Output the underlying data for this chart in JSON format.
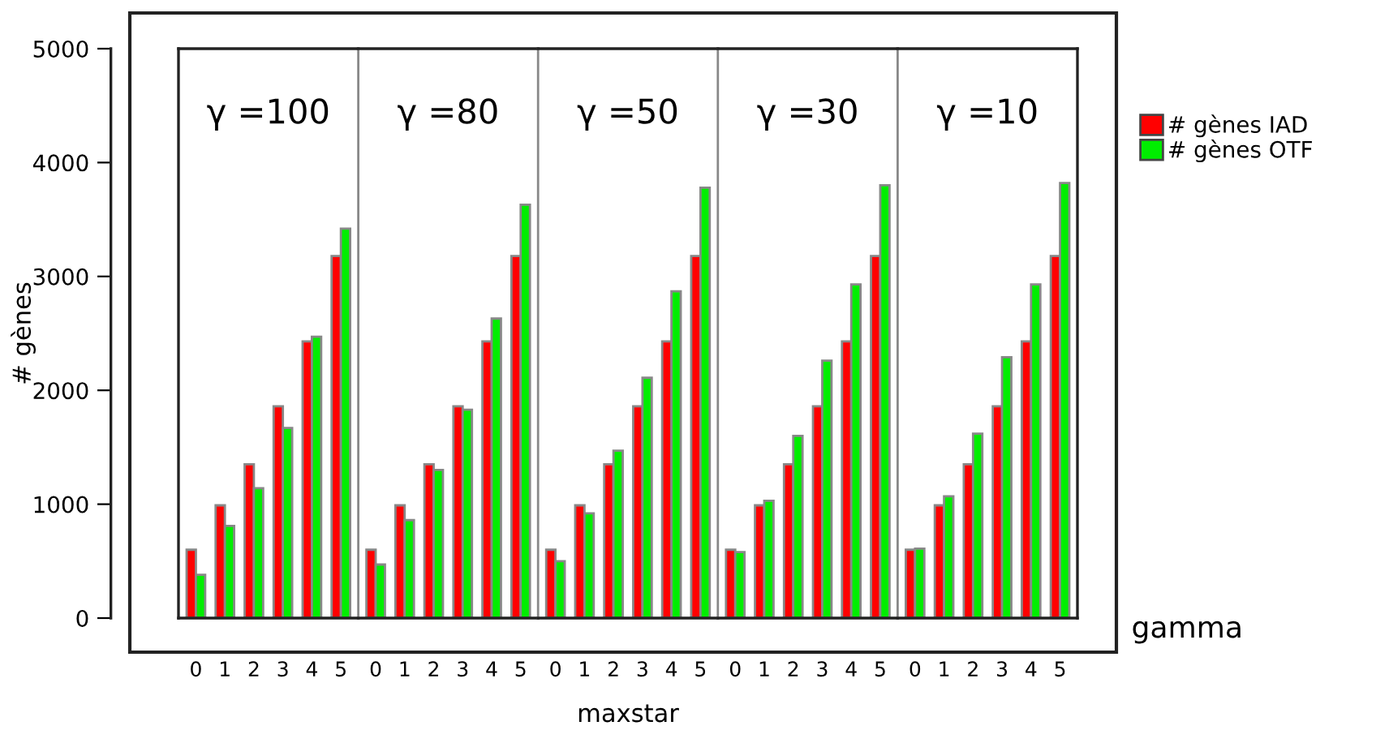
{
  "chart_data": [
    {
      "type": "bar",
      "categories": [
        "0",
        "1",
        "2",
        "3",
        "4",
        "5"
      ],
      "ylabel": "# gènes",
      "ylim": [
        0,
        5000
      ],
      "yticks": [
        0,
        1000,
        2000,
        3000,
        4000,
        5000
      ],
      "annotations": [
        "γ =100"
      ],
      "series": [
        {
          "color": "#ff0000",
          "values": [
            600,
            990,
            1350,
            1860,
            2430,
            3180
          ]
        },
        {
          "color": "#00ee00",
          "values": [
            380,
            810,
            1140,
            1670,
            2470,
            3420
          ]
        }
      ]
    },
    {
      "type": "bar",
      "categories": [
        "0",
        "1",
        "2",
        "3",
        "4",
        "5"
      ],
      "ylim": [
        0,
        5000
      ],
      "tick_labels": "x",
      "annotations": [
        "γ =80"
      ],
      "series": [
        {
          "color": "#ff0000",
          "values": [
            600,
            990,
            1350,
            1860,
            2430,
            3180
          ]
        },
        {
          "color": "#00ee00",
          "values": [
            470,
            860,
            1300,
            1830,
            2630,
            3630
          ]
        }
      ]
    },
    {
      "type": "bar",
      "categories": [
        "0",
        "1",
        "2",
        "3",
        "4",
        "5"
      ],
      "xlabel": "maxstar",
      "ylim": [
        0,
        5000
      ],
      "tick_labels": "x",
      "annotations": [
        "γ =50"
      ],
      "series": [
        {
          "color": "#ff0000",
          "values": [
            600,
            990,
            1350,
            1860,
            2430,
            3180
          ]
        },
        {
          "color": "#00ee00",
          "values": [
            500,
            920,
            1470,
            2110,
            2870,
            3780
          ]
        }
      ]
    },
    {
      "type": "bar",
      "categories": [
        "0",
        "1",
        "2",
        "3",
        "4",
        "5"
      ],
      "ylim": [
        0,
        5000
      ],
      "tick_labels": "x",
      "annotations": [
        "γ =30"
      ],
      "series": [
        {
          "color": "#ff0000",
          "values": [
            600,
            990,
            1350,
            1860,
            2430,
            3180
          ]
        },
        {
          "color": "#00ee00",
          "values": [
            580,
            1030,
            1600,
            2260,
            2930,
            3800
          ]
        }
      ]
    },
    {
      "type": "bar",
      "categories": [
        "0",
        "1",
        "2",
        "3",
        "4",
        "5"
      ],
      "ylim": [
        0,
        5000
      ],
      "tick_labels": "x",
      "annotations": [
        "γ =10",
        "gamma"
      ],
      "legend": "right",
      "series": [
        {
          "name": "# gènes IAD",
          "color": "#ff0000",
          "values": [
            600,
            990,
            1350,
            1860,
            2430,
            3180
          ]
        },
        {
          "name": "# gènes OTF",
          "color": "#00ee00",
          "values": [
            610,
            1070,
            1620,
            2290,
            2930,
            3820
          ]
        }
      ]
    }
  ]
}
